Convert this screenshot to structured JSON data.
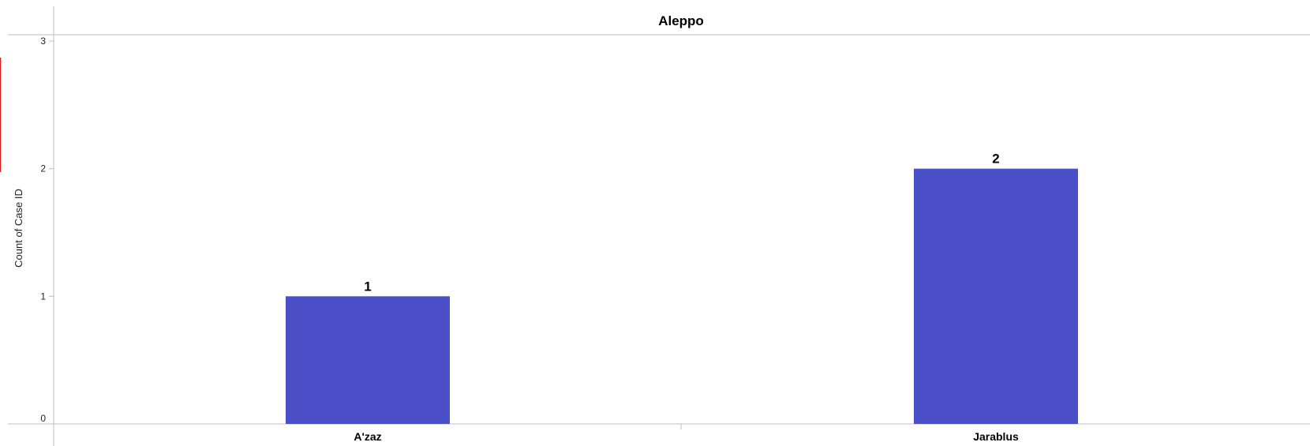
{
  "chart_data": {
    "type": "bar",
    "facet": "Aleppo",
    "categories": [
      "A'zaz",
      "Jarablus"
    ],
    "values": [
      1,
      2
    ],
    "data_labels": [
      "1",
      "2"
    ],
    "xlabel": "",
    "ylabel": "Count of Case ID",
    "ylim": [
      0,
      3
    ],
    "y_ticks": [
      "0",
      "1",
      "2",
      "3"
    ],
    "grid": false,
    "legend": "none",
    "colors": {
      "bar": "#4b4fc8",
      "axis": "#bdbdbd",
      "edge_accent": "#d81e1e"
    }
  }
}
